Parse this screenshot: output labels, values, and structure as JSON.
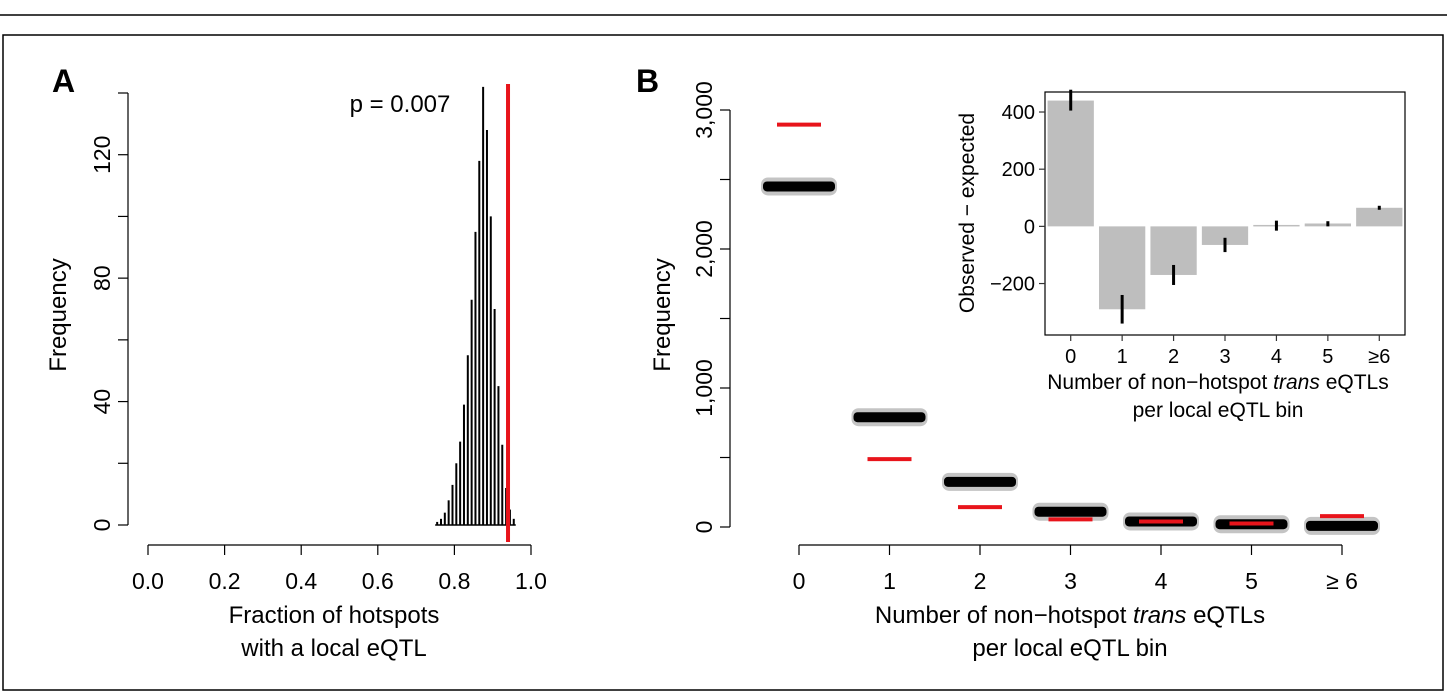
{
  "figure": {
    "colors": {
      "observed": "#e8141b",
      "bars": "#000000",
      "inset_bars": "#bebebe",
      "frame": "#000000"
    }
  },
  "chart_data": [
    {
      "panel": "A",
      "type": "bar",
      "subtype": "histogram",
      "xlabel_lines": [
        "Fraction of hotspots",
        "with a local eQTL"
      ],
      "ylabel": "Frequency",
      "xlim": [
        0.0,
        1.0
      ],
      "ylim": [
        0,
        140
      ],
      "xticks": [
        "0.0",
        "0.2",
        "0.4",
        "0.6",
        "0.8",
        "1.0"
      ],
      "yticks": [
        "0",
        "40",
        "80",
        "120"
      ],
      "bin_centers": [
        0.755,
        0.765,
        0.775,
        0.785,
        0.795,
        0.805,
        0.815,
        0.825,
        0.835,
        0.845,
        0.855,
        0.865,
        0.875,
        0.885,
        0.895,
        0.905,
        0.915,
        0.925,
        0.935,
        0.945,
        0.955
      ],
      "values": [
        1,
        2,
        4,
        8,
        13,
        20,
        27,
        39,
        55,
        73,
        95,
        118,
        142,
        128,
        100,
        70,
        45,
        26,
        12,
        5,
        2
      ],
      "observed_line": 0.94,
      "annotation": "p = 0.007"
    },
    {
      "panel": "B",
      "type": "scatter",
      "xlabel_lines": [
        "Number of non−hotspot ",
        "trans",
        " eQTLs",
        "per local eQTL bin"
      ],
      "ylabel": "Frequency",
      "ylim": [
        0,
        3000
      ],
      "categories": [
        "0",
        "1",
        "2",
        "3",
        "4",
        "5",
        "≥ 6"
      ],
      "yticks": [
        "0",
        "1,000",
        "2,000",
        "3,000"
      ],
      "permuted_means": [
        2450,
        790,
        325,
        110,
        40,
        20,
        8
      ],
      "observed": [
        2895,
        488,
        143,
        55,
        40,
        25,
        78
      ]
    },
    {
      "panel": "B-inset",
      "type": "bar",
      "xlabel_lines": [
        "Number of non−hotspot ",
        "trans",
        " eQTLs",
        "per local eQTL bin"
      ],
      "ylabel": "Observed − expected",
      "ylim": [
        -380,
        470
      ],
      "categories": [
        "0",
        "1",
        "2",
        "3",
        "4",
        "5",
        "≥6"
      ],
      "yticks": [
        "−200",
        "0",
        "200",
        "400"
      ],
      "values": [
        440,
        -290,
        -170,
        -65,
        5,
        10,
        65
      ],
      "error_low": [
        405,
        -340,
        -205,
        -90,
        -15,
        0,
        58
      ],
      "error_high": [
        478,
        -240,
        -135,
        -40,
        20,
        18,
        72
      ]
    }
  ],
  "panel_labels": {
    "a": "A",
    "b": "B"
  }
}
